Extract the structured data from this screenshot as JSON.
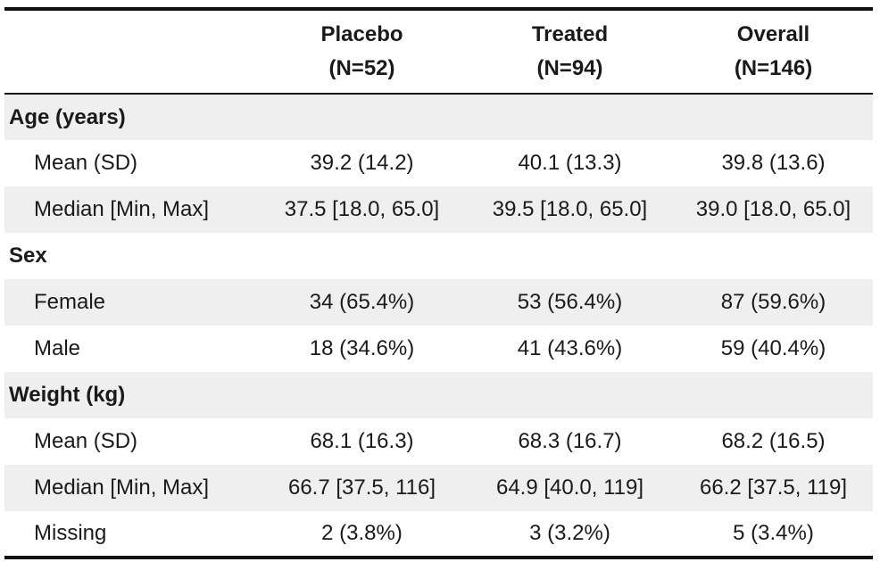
{
  "columns": {
    "placebo": {
      "name": "Placebo",
      "n": "(N=52)"
    },
    "treated": {
      "name": "Treated",
      "n": "(N=94)"
    },
    "overall": {
      "name": "Overall",
      "n": "(N=146)"
    }
  },
  "sections": {
    "age": {
      "title": "Age (years)",
      "rows": [
        {
          "label": "Mean (SD)",
          "placebo": "39.2 (14.2)",
          "treated": "40.1 (13.3)",
          "overall": "39.8 (13.6)"
        },
        {
          "label": "Median [Min, Max]",
          "placebo": "37.5 [18.0, 65.0]",
          "treated": "39.5 [18.0, 65.0]",
          "overall": "39.0 [18.0, 65.0]"
        }
      ]
    },
    "sex": {
      "title": "Sex",
      "rows": [
        {
          "label": "Female",
          "placebo": "34 (65.4%)",
          "treated": "53 (56.4%)",
          "overall": "87 (59.6%)"
        },
        {
          "label": "Male",
          "placebo": "18 (34.6%)",
          "treated": "41 (43.6%)",
          "overall": "59 (40.4%)"
        }
      ]
    },
    "weight": {
      "title": "Weight (kg)",
      "rows": [
        {
          "label": "Mean (SD)",
          "placebo": "68.1 (16.3)",
          "treated": "68.3 (16.7)",
          "overall": "68.2 (16.5)"
        },
        {
          "label": "Median [Min, Max]",
          "placebo": "66.7 [37.5, 116]",
          "treated": "64.9 [40.0, 119]",
          "overall": "66.2 [37.5, 119]"
        },
        {
          "label": "Missing",
          "placebo": "2 (3.8%)",
          "treated": "3 (3.2%)",
          "overall": "5 (3.4%)"
        }
      ]
    }
  }
}
